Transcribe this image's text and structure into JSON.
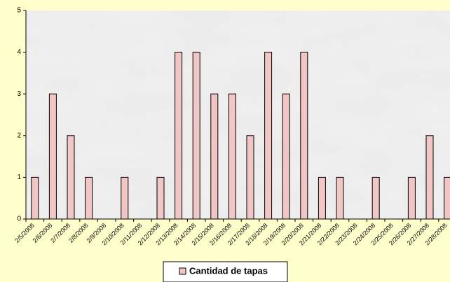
{
  "chart_data": {
    "type": "bar",
    "categories": [
      "2/5/2008",
      "2/6/2008",
      "2/7/2008",
      "2/8/2008",
      "2/9/2008",
      "2/10/2008",
      "2/11/2008",
      "2/12/2008",
      "2/13/2008",
      "2/14/2008",
      "2/15/2008",
      "2/16/2008",
      "2/17/2008",
      "2/18/2008",
      "2/19/2008",
      "2/20/2008",
      "2/21/2008",
      "2/22/2008",
      "2/23/2008",
      "2/24/2008",
      "2/25/2008",
      "2/26/2008",
      "2/27/2008",
      "2/28/2008"
    ],
    "series": [
      {
        "name": "Cantidad de tapas",
        "color": "#f2c6c6",
        "values": [
          1,
          3,
          2,
          1,
          0,
          1,
          0,
          1,
          4,
          4,
          3,
          3,
          2,
          4,
          3,
          4,
          1,
          1,
          0,
          1,
          0,
          1,
          2,
          1
        ]
      }
    ],
    "ylim": [
      0,
      5
    ],
    "yticks": [
      0,
      1,
      2,
      3,
      4,
      5
    ],
    "grid": false,
    "legend": "bottom"
  }
}
